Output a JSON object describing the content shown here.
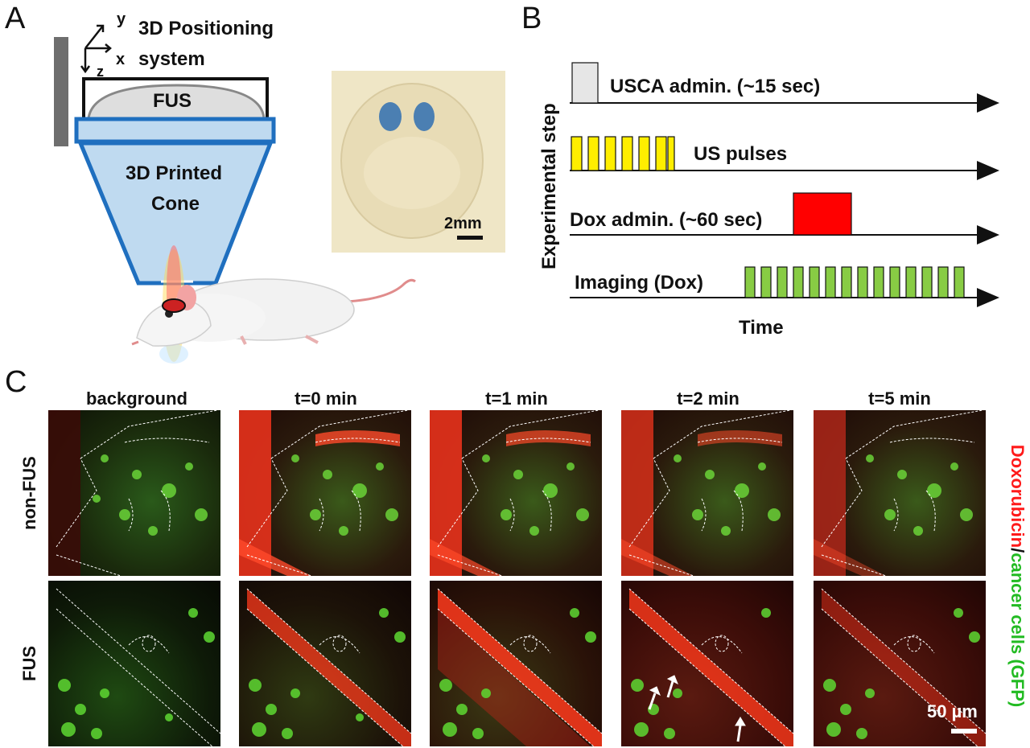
{
  "panelA": {
    "letter": "A",
    "axes": {
      "x": "x",
      "y": "y",
      "z": "z"
    },
    "positioning_label_line1": "3D Positioning",
    "positioning_label_line2": "system",
    "transducer_label": "FUS",
    "cone_label_line1": "3D Printed",
    "cone_label_line2": "Cone",
    "scalebar_label": "2mm"
  },
  "panelB": {
    "letter": "B",
    "y_axis_label": "Experimental step",
    "x_axis_label": "Time",
    "rows": [
      {
        "label": "USCA admin. (~15 sec)",
        "color": "#e6e6e6"
      },
      {
        "label": "US pulses",
        "color": "#ffee00"
      },
      {
        "label": "Dox admin. (~60 sec)",
        "color": "#ff0000"
      },
      {
        "label": "Imaging (Dox)",
        "color": "#88cc44"
      }
    ]
  },
  "panelC": {
    "letter": "C",
    "columns": [
      "background",
      "t=0 min",
      "t=1 min",
      "t=2 min",
      "t=5 min"
    ],
    "row_labels": [
      "non-FUS",
      "FUS"
    ],
    "scalebar_label": "50 µm",
    "legend_red": "Doxorubicin",
    "legend_sep": "/",
    "legend_green": "cancer cells (GFP)",
    "colors": {
      "red": "#ff1a1a",
      "green": "#22bb22"
    }
  }
}
